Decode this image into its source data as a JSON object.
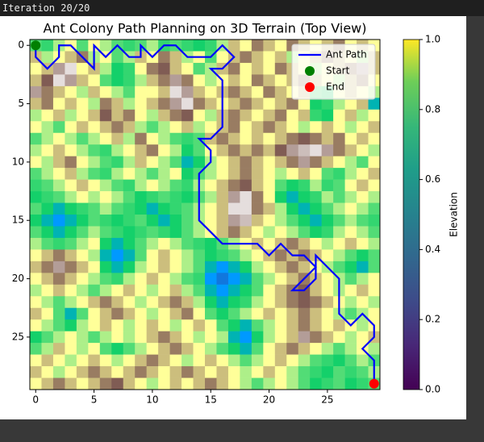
{
  "console_text": "Iteration 20/20",
  "chart_data": {
    "type": "heatmap",
    "title": "Ant Colony Path Planning on 3D Terrain (Top View)",
    "cmap": "terrain",
    "xlim": [
      -0.5,
      29.5
    ],
    "ylim": [
      29.5,
      -0.5
    ],
    "xticks": [
      0,
      5,
      10,
      15,
      20,
      25
    ],
    "yticks": [
      0,
      5,
      10,
      15,
      20,
      25
    ],
    "z": [
      [
        0.33,
        0.3,
        0.42,
        0.5,
        0.33,
        0.5,
        0.42,
        0.33,
        0.3,
        0.33,
        0.42,
        0.3,
        0.33,
        0.3,
        0.27,
        0.3,
        0.42,
        0.6,
        0.5,
        0.7,
        0.6,
        0.5,
        0.7,
        0.6,
        0.5,
        0.6,
        0.7,
        0.5,
        0.6,
        0.5
      ],
      [
        0.6,
        0.42,
        0.5,
        0.6,
        0.7,
        0.42,
        0.5,
        0.33,
        0.42,
        0.6,
        0.5,
        0.7,
        0.6,
        0.42,
        0.5,
        0.33,
        0.5,
        0.6,
        0.7,
        0.6,
        0.5,
        0.6,
        0.42,
        0.5,
        0.6,
        0.7,
        0.6,
        0.5,
        0.42,
        0.6
      ],
      [
        0.5,
        0.6,
        0.85,
        0.95,
        0.5,
        0.6,
        0.42,
        0.27,
        0.3,
        0.5,
        0.7,
        0.75,
        0.6,
        0.5,
        0.33,
        0.42,
        0.6,
        0.7,
        0.5,
        0.6,
        0.5,
        0.7,
        0.6,
        0.5,
        0.42,
        0.5,
        0.6,
        0.7,
        0.85,
        0.6
      ],
      [
        0.6,
        0.75,
        0.95,
        0.85,
        0.6,
        0.5,
        0.33,
        0.27,
        0.3,
        0.42,
        0.6,
        0.7,
        0.85,
        0.7,
        0.5,
        0.42,
        0.5,
        0.6,
        0.5,
        0.7,
        0.6,
        0.5,
        0.6,
        0.7,
        0.6,
        0.5,
        0.42,
        0.6,
        0.7,
        0.5
      ],
      [
        0.85,
        0.7,
        0.6,
        0.5,
        0.42,
        0.6,
        0.5,
        0.42,
        0.33,
        0.5,
        0.5,
        0.6,
        0.95,
        0.85,
        0.6,
        0.5,
        0.6,
        0.7,
        0.6,
        0.5,
        0.7,
        0.6,
        0.5,
        0.6,
        0.33,
        0.3,
        0.5,
        0.6,
        0.5,
        0.42
      ],
      [
        0.6,
        0.7,
        0.5,
        0.6,
        0.5,
        0.42,
        0.7,
        0.6,
        0.42,
        0.5,
        0.6,
        0.7,
        0.85,
        0.95,
        0.7,
        0.6,
        0.5,
        0.6,
        0.7,
        0.6,
        0.5,
        0.6,
        0.7,
        0.5,
        0.27,
        0.3,
        0.42,
        0.5,
        0.6,
        0.2
      ],
      [
        0.42,
        0.5,
        0.6,
        0.42,
        0.5,
        0.6,
        0.75,
        0.6,
        0.7,
        0.5,
        0.42,
        0.6,
        0.7,
        0.75,
        0.5,
        0.42,
        0.6,
        0.7,
        0.6,
        0.5,
        0.6,
        0.7,
        0.5,
        0.6,
        0.3,
        0.27,
        0.5,
        0.6,
        0.42,
        0.5
      ],
      [
        0.5,
        0.42,
        0.33,
        0.5,
        0.6,
        0.5,
        0.6,
        0.7,
        0.6,
        0.42,
        0.33,
        0.42,
        0.5,
        0.6,
        0.42,
        0.5,
        0.6,
        0.7,
        0.5,
        0.6,
        0.7,
        0.6,
        0.5,
        0.42,
        0.5,
        0.6,
        0.5,
        0.42,
        0.5,
        0.6
      ],
      [
        0.33,
        0.42,
        0.5,
        0.42,
        0.33,
        0.42,
        0.5,
        0.6,
        0.42,
        0.7,
        0.5,
        0.42,
        0.33,
        0.3,
        0.33,
        0.6,
        0.7,
        0.6,
        0.5,
        0.6,
        0.5,
        0.6,
        0.7,
        0.75,
        0.7,
        0.6,
        0.7,
        0.5,
        0.6,
        0.5
      ],
      [
        0.42,
        0.5,
        0.6,
        0.5,
        0.42,
        0.33,
        0.3,
        0.42,
        0.5,
        0.6,
        0.7,
        0.5,
        0.42,
        0.27,
        0.33,
        0.5,
        0.6,
        0.7,
        0.6,
        0.7,
        0.6,
        0.75,
        0.85,
        0.9,
        0.95,
        0.85,
        0.7,
        0.6,
        0.5,
        0.42
      ],
      [
        0.5,
        0.42,
        0.6,
        0.7,
        0.5,
        0.42,
        0.33,
        0.3,
        0.42,
        0.6,
        0.5,
        0.42,
        0.33,
        0.2,
        0.27,
        0.42,
        0.5,
        0.6,
        0.7,
        0.6,
        0.5,
        0.6,
        0.7,
        0.85,
        0.7,
        0.6,
        0.5,
        0.42,
        0.33,
        0.5
      ],
      [
        0.33,
        0.42,
        0.5,
        0.6,
        0.42,
        0.33,
        0.3,
        0.42,
        0.5,
        0.42,
        0.33,
        0.42,
        0.5,
        0.27,
        0.33,
        0.42,
        0.5,
        0.6,
        0.7,
        0.6,
        0.5,
        0.42,
        0.5,
        0.6,
        0.5,
        0.33,
        0.3,
        0.42,
        0.5,
        0.6
      ],
      [
        0.3,
        0.33,
        0.42,
        0.5,
        0.6,
        0.5,
        0.42,
        0.33,
        0.3,
        0.42,
        0.5,
        0.42,
        0.33,
        0.3,
        0.42,
        0.5,
        0.6,
        0.7,
        0.75,
        0.6,
        0.5,
        0.33,
        0.27,
        0.3,
        0.42,
        0.3,
        0.33,
        0.5,
        0.6,
        0.5
      ],
      [
        0.27,
        0.3,
        0.33,
        0.42,
        0.5,
        0.42,
        0.5,
        0.42,
        0.33,
        0.27,
        0.3,
        0.33,
        0.3,
        0.27,
        0.33,
        0.42,
        0.6,
        0.85,
        0.95,
        0.7,
        0.5,
        0.27,
        0.2,
        0.27,
        0.3,
        0.42,
        0.33,
        0.42,
        0.5,
        0.42
      ],
      [
        0.33,
        0.27,
        0.2,
        0.27,
        0.3,
        0.33,
        0.42,
        0.33,
        0.3,
        0.27,
        0.2,
        0.27,
        0.3,
        0.33,
        0.42,
        0.5,
        0.6,
        0.95,
        0.95,
        0.7,
        0.6,
        0.42,
        0.27,
        0.2,
        0.27,
        0.33,
        0.42,
        0.5,
        0.42,
        0.33
      ],
      [
        0.27,
        0.2,
        0.15,
        0.2,
        0.27,
        0.33,
        0.3,
        0.27,
        0.3,
        0.33,
        0.27,
        0.2,
        0.27,
        0.33,
        0.42,
        0.5,
        0.6,
        0.85,
        0.9,
        0.6,
        0.5,
        0.42,
        0.33,
        0.27,
        0.2,
        0.27,
        0.33,
        0.42,
        0.33,
        0.3
      ],
      [
        0.33,
        0.27,
        0.2,
        0.27,
        0.33,
        0.42,
        0.33,
        0.3,
        0.27,
        0.3,
        0.33,
        0.3,
        0.27,
        0.33,
        0.42,
        0.5,
        0.6,
        0.7,
        0.6,
        0.5,
        0.42,
        0.5,
        0.42,
        0.33,
        0.27,
        0.3,
        0.42,
        0.5,
        0.42,
        0.33
      ],
      [
        0.42,
        0.33,
        0.3,
        0.33,
        0.42,
        0.5,
        0.27,
        0.2,
        0.27,
        0.33,
        0.42,
        0.5,
        0.42,
        0.33,
        0.3,
        0.27,
        0.33,
        0.42,
        0.5,
        0.6,
        0.5,
        0.6,
        0.7,
        0.6,
        0.5,
        0.42,
        0.5,
        0.6,
        0.5,
        0.42
      ],
      [
        0.5,
        0.6,
        0.7,
        0.6,
        0.5,
        0.42,
        0.2,
        0.15,
        0.2,
        0.33,
        0.5,
        0.6,
        0.5,
        0.42,
        0.33,
        0.27,
        0.3,
        0.33,
        0.42,
        0.5,
        0.6,
        0.7,
        0.6,
        0.7,
        0.6,
        0.5,
        0.42,
        0.33,
        0.27,
        0.33
      ],
      [
        0.6,
        0.7,
        0.85,
        0.7,
        0.6,
        0.5,
        0.27,
        0.2,
        0.27,
        0.42,
        0.5,
        0.6,
        0.5,
        0.42,
        0.33,
        0.2,
        0.15,
        0.2,
        0.27,
        0.42,
        0.5,
        0.6,
        0.7,
        0.6,
        0.5,
        0.42,
        0.33,
        0.27,
        0.2,
        0.33
      ],
      [
        0.5,
        0.6,
        0.7,
        0.6,
        0.5,
        0.42,
        0.33,
        0.3,
        0.42,
        0.5,
        0.6,
        0.5,
        0.42,
        0.33,
        0.3,
        0.15,
        0.1,
        0.15,
        0.2,
        0.33,
        0.42,
        0.5,
        0.6,
        0.7,
        0.6,
        0.5,
        0.42,
        0.33,
        0.42,
        0.5
      ],
      [
        0.42,
        0.5,
        0.6,
        0.5,
        0.42,
        0.33,
        0.42,
        0.5,
        0.6,
        0.5,
        0.42,
        0.5,
        0.6,
        0.42,
        0.33,
        0.2,
        0.15,
        0.2,
        0.27,
        0.33,
        0.5,
        0.6,
        0.7,
        0.75,
        0.6,
        0.5,
        0.42,
        0.5,
        0.6,
        0.5
      ],
      [
        0.5,
        0.42,
        0.33,
        0.42,
        0.5,
        0.6,
        0.7,
        0.6,
        0.5,
        0.42,
        0.5,
        0.6,
        0.7,
        0.6,
        0.42,
        0.27,
        0.2,
        0.27,
        0.3,
        0.42,
        0.5,
        0.6,
        0.7,
        0.75,
        0.7,
        0.6,
        0.5,
        0.42,
        0.5,
        0.42
      ],
      [
        0.6,
        0.5,
        0.33,
        0.2,
        0.33,
        0.5,
        0.6,
        0.7,
        0.6,
        0.5,
        0.42,
        0.5,
        0.6,
        0.7,
        0.5,
        0.33,
        0.27,
        0.33,
        0.42,
        0.5,
        0.6,
        0.5,
        0.6,
        0.7,
        0.6,
        0.5,
        0.42,
        0.33,
        0.42,
        0.5
      ],
      [
        0.5,
        0.42,
        0.33,
        0.27,
        0.42,
        0.5,
        0.6,
        0.5,
        0.42,
        0.5,
        0.6,
        0.5,
        0.42,
        0.5,
        0.6,
        0.5,
        0.33,
        0.27,
        0.2,
        0.33,
        0.42,
        0.5,
        0.6,
        0.7,
        0.6,
        0.5,
        0.6,
        0.5,
        0.42,
        0.5
      ],
      [
        0.27,
        0.33,
        0.42,
        0.5,
        0.42,
        0.33,
        0.42,
        0.5,
        0.42,
        0.5,
        0.6,
        0.7,
        0.6,
        0.5,
        0.42,
        0.5,
        0.42,
        0.2,
        0.15,
        0.27,
        0.42,
        0.5,
        0.6,
        0.85,
        0.7,
        0.6,
        0.5,
        0.42,
        0.5,
        0.6
      ],
      [
        0.33,
        0.42,
        0.6,
        0.5,
        0.42,
        0.5,
        0.33,
        0.27,
        0.33,
        0.42,
        0.5,
        0.6,
        0.7,
        0.6,
        0.5,
        0.42,
        0.33,
        0.27,
        0.2,
        0.33,
        0.5,
        0.6,
        0.7,
        0.6,
        0.5,
        0.42,
        0.33,
        0.42,
        0.5,
        0.42
      ],
      [
        0.5,
        0.6,
        0.5,
        0.42,
        0.5,
        0.6,
        0.5,
        0.42,
        0.5,
        0.6,
        0.7,
        0.6,
        0.5,
        0.42,
        0.5,
        0.6,
        0.5,
        0.42,
        0.33,
        0.42,
        0.5,
        0.6,
        0.5,
        0.42,
        0.33,
        0.3,
        0.27,
        0.33,
        0.42,
        0.33
      ],
      [
        0.6,
        0.5,
        0.42,
        0.5,
        0.6,
        0.7,
        0.6,
        0.5,
        0.6,
        0.7,
        0.6,
        0.5,
        0.6,
        0.7,
        0.6,
        0.5,
        0.6,
        0.5,
        0.42,
        0.5,
        0.6,
        0.5,
        0.42,
        0.33,
        0.3,
        0.27,
        0.33,
        0.3,
        0.33,
        0.42
      ],
      [
        0.5,
        0.6,
        0.7,
        0.6,
        0.5,
        0.6,
        0.7,
        0.75,
        0.6,
        0.5,
        0.42,
        0.5,
        0.6,
        0.5,
        0.6,
        0.7,
        0.6,
        0.5,
        0.42,
        0.33,
        0.42,
        0.5,
        0.42,
        0.33,
        0.27,
        0.3,
        0.33,
        0.27,
        0.3,
        0.33
      ]
    ],
    "colorbar": {
      "label": "Elevation",
      "lim": [
        0,
        1
      ],
      "ticks": [
        {
          "value": 0,
          "label": "0.0"
        },
        {
          "value": 0.2,
          "label": "0.2"
        },
        {
          "value": 0.4,
          "label": "0.4"
        },
        {
          "value": 0.6,
          "label": "0.6"
        },
        {
          "value": 0.8,
          "label": "0.8"
        },
        {
          "value": 1,
          "label": "1.0"
        }
      ]
    },
    "series": [
      {
        "name": "Ant Path",
        "color": "#0000ff",
        "x": [
          0,
          0,
          1,
          2,
          2,
          3,
          4,
          5,
          5,
          5,
          6,
          7,
          8,
          9,
          9,
          10,
          11,
          12,
          13,
          14,
          15,
          16,
          17,
          16,
          15,
          16,
          16,
          15,
          14,
          15,
          15,
          14,
          14,
          15,
          16,
          17,
          18,
          19,
          20,
          21,
          22,
          23,
          24,
          23,
          22,
          23,
          24,
          24,
          25,
          26,
          26,
          27,
          28,
          29,
          29,
          28,
          29,
          29
        ],
        "y": [
          0,
          1,
          2,
          1,
          0,
          0,
          1,
          2,
          1,
          0,
          1,
          0,
          1,
          1,
          0,
          1,
          0,
          0,
          1,
          1,
          1,
          0,
          1,
          2,
          2,
          3,
          7,
          8,
          8,
          9,
          10,
          11,
          15,
          16,
          17,
          17,
          17,
          17,
          18,
          17,
          18,
          18,
          19,
          20,
          21,
          21,
          20,
          18,
          19,
          20,
          23,
          24,
          23,
          24,
          25,
          26,
          27,
          29
        ]
      }
    ],
    "markers": [
      {
        "name": "Start",
        "color": "#008000",
        "x": 0,
        "y": 0
      },
      {
        "name": "End",
        "color": "#ff0000",
        "x": 29,
        "y": 29
      }
    ]
  }
}
